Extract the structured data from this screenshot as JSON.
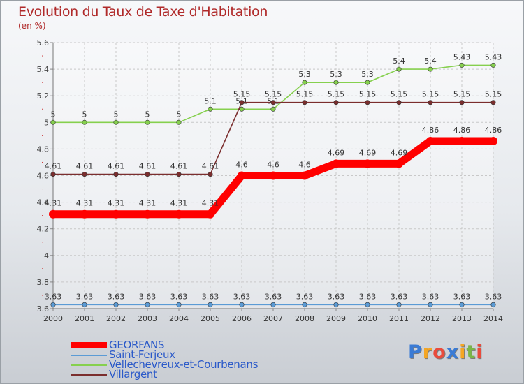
{
  "title": "Evolution du Taux de Taxe d'Habitation",
  "unit": "(en %)",
  "logo": {
    "text": "Proxiti",
    "colors": [
      "#3a7bd5",
      "#f5a623",
      "#e94b3c",
      "#3a7bd5",
      "#f5a623",
      "#7ab648",
      "#e94b3c"
    ]
  },
  "chart_data": {
    "type": "line",
    "x": [
      "2000",
      "2001",
      "2002",
      "2003",
      "2004",
      "2005",
      "2006",
      "2007",
      "2008",
      "2009",
      "2010",
      "2011",
      "2012",
      "2013",
      "2014"
    ],
    "xlim": [
      2000,
      2014
    ],
    "ylim": [
      3.6,
      5.6
    ],
    "yticks": [
      "3.6",
      "3.8",
      "4",
      "4.2",
      "4.4",
      "4.6",
      "4.8",
      "5",
      "5.2",
      "5.4",
      "5.6"
    ],
    "grid": true,
    "legend_position": "bottom-left",
    "series": [
      {
        "name": "GEORFANS",
        "color": "#ff0000",
        "emphasis": true,
        "values": [
          4.31,
          4.31,
          4.31,
          4.31,
          4.31,
          4.31,
          4.6,
          4.6,
          4.6,
          4.69,
          4.69,
          4.69,
          4.86,
          4.86,
          4.86
        ],
        "labels": [
          "4.31",
          "4.31",
          "4.31",
          "4.31",
          "4.31",
          "4.31",
          "4.6",
          "4.6",
          "4.6",
          "4.69",
          "4.69",
          "4.69",
          "4.86",
          "4.86",
          "4.86"
        ]
      },
      {
        "name": "Saint-Ferjeux",
        "color": "#5b9bd5",
        "values": [
          3.63,
          3.63,
          3.63,
          3.63,
          3.63,
          3.63,
          3.63,
          3.63,
          3.63,
          3.63,
          3.63,
          3.63,
          3.63,
          3.63,
          3.63
        ],
        "labels": [
          "3.63",
          "3.63",
          "3.63",
          "3.63",
          "3.63",
          "3.63",
          "3.63",
          "3.63",
          "3.63",
          "3.63",
          "3.63",
          "3.63",
          "3.63",
          "3.63",
          "3.63"
        ]
      },
      {
        "name": "Vellechevreux-et-Courbenans",
        "color": "#86d04e",
        "values": [
          5,
          5,
          5,
          5,
          5,
          5.1,
          5.1,
          5.1,
          5.3,
          5.3,
          5.3,
          5.4,
          5.4,
          5.43,
          5.43
        ],
        "labels": [
          "5",
          "5",
          "5",
          "5",
          "5",
          "5.1",
          "5.1",
          "5.1",
          "5.3",
          "5.3",
          "5.3",
          "5.4",
          "5.4",
          "5.43",
          "5.43"
        ]
      },
      {
        "name": "Villargent",
        "color": "#7b2e2e",
        "values": [
          4.61,
          4.61,
          4.61,
          4.61,
          4.61,
          4.61,
          5.15,
          5.15,
          5.15,
          5.15,
          5.15,
          5.15,
          5.15,
          5.15,
          5.15
        ],
        "labels": [
          "4.61",
          "4.61",
          "4.61",
          "4.61",
          "4.61",
          "4.61",
          "5.15",
          "5.15",
          "5.15",
          "5.15",
          "5.15",
          "5.15",
          "5.15",
          "5.15",
          "5.15"
        ]
      }
    ]
  }
}
